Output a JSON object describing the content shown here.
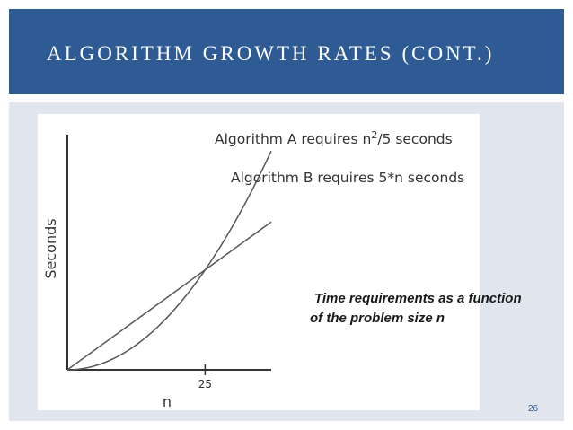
{
  "slide": {
    "title": "ALGORITHM GROWTH RATES (CONT.)",
    "caption_line1": "Time requirements as a function",
    "caption_line2": "of the problem size n",
    "page_number": "26"
  },
  "colors": {
    "title_band": "#2e5b94",
    "content_bg": "#e1e6ee",
    "curve": "#555555",
    "axis": "#333333"
  },
  "chart_data": {
    "type": "line",
    "title": "",
    "xlabel": "n",
    "ylabel": "Seconds",
    "x_ticks": [
      25
    ],
    "xlim": [
      0,
      37
    ],
    "ylim": [
      0,
      320
    ],
    "series": [
      {
        "name": "Algorithm A requires n²/5 seconds",
        "label_main": "Algorithm A requires n",
        "label_sup": "2",
        "label_tail": "/5 seconds",
        "formula": "n^2/5",
        "x": [
          0,
          5,
          10,
          15,
          20,
          25,
          30,
          35,
          37
        ],
        "y": [
          0,
          5,
          20,
          45,
          80,
          125,
          180,
          245,
          273.8
        ]
      },
      {
        "name": "Algorithm B requires 5*n seconds",
        "label_main": "Algorithm B requires 5",
        "label_sup": "*",
        "label_tail": "n seconds",
        "formula": "5*n",
        "x": [
          0,
          5,
          10,
          15,
          20,
          25,
          30,
          35,
          37
        ],
        "y": [
          0,
          25,
          50,
          75,
          100,
          125,
          150,
          175,
          185
        ]
      }
    ]
  }
}
